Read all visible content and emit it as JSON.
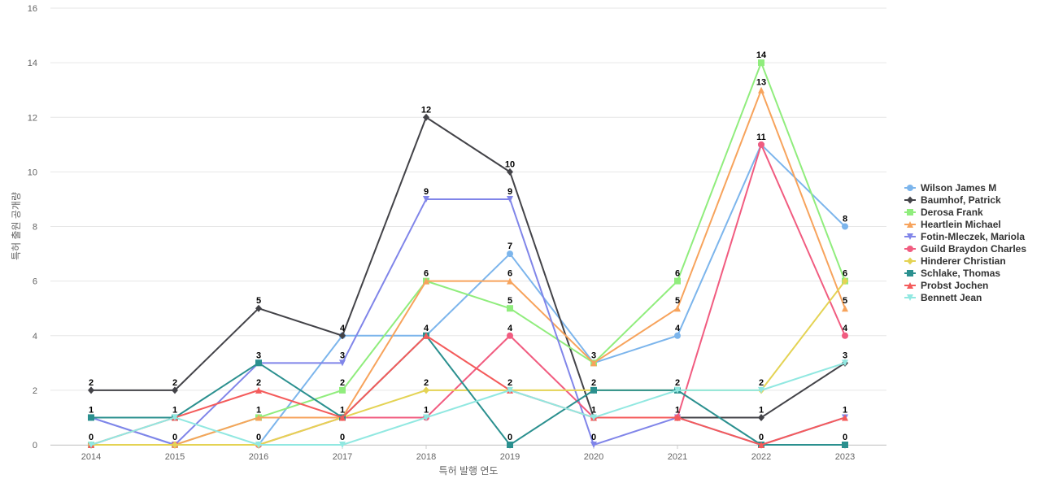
{
  "chart_data": {
    "type": "line",
    "title": "",
    "xlabel": "특허 발행 연도",
    "ylabel": "특허 출원 공개량",
    "categories": [
      "2014",
      "2015",
      "2016",
      "2017",
      "2018",
      "2019",
      "2020",
      "2021",
      "2022",
      "2023"
    ],
    "ylim": [
      0,
      16
    ],
    "yticks": [
      0,
      2,
      4,
      6,
      8,
      10,
      12,
      14,
      16
    ],
    "grid": true,
    "legend_position": "right",
    "series": [
      {
        "name": "Wilson James M",
        "color": "#7cb5ec",
        "marker": "circle",
        "values": [
          1,
          0,
          0,
          4,
          4,
          7,
          3,
          4,
          11,
          8
        ]
      },
      {
        "name": "Baumhof, Patrick",
        "color": "#434348",
        "marker": "diamond",
        "values": [
          2,
          2,
          5,
          4,
          12,
          10,
          1,
          1,
          1,
          3
        ]
      },
      {
        "name": "Derosa Frank",
        "color": "#90ed7d",
        "marker": "square",
        "values": [
          0,
          0,
          1,
          2,
          6,
          5,
          3,
          6,
          14,
          6
        ]
      },
      {
        "name": "Heartlein Michael",
        "color": "#f7a35c",
        "marker": "triangle",
        "values": [
          0,
          0,
          1,
          1,
          6,
          6,
          3,
          5,
          13,
          5
        ]
      },
      {
        "name": "Fotin-Mleczek, Mariola",
        "color": "#8085e9",
        "marker": "triangle-down",
        "values": [
          1,
          0,
          3,
          3,
          9,
          9,
          0,
          1,
          0,
          1
        ]
      },
      {
        "name": "Guild Braydon Charles",
        "color": "#f15c80",
        "marker": "circle",
        "values": [
          0,
          0,
          0,
          1,
          1,
          4,
          1,
          1,
          11,
          4
        ]
      },
      {
        "name": "Hinderer Christian",
        "color": "#e4d354",
        "marker": "diamond",
        "values": [
          0,
          0,
          0,
          1,
          2,
          2,
          2,
          2,
          2,
          6
        ]
      },
      {
        "name": "Schlake, Thomas",
        "color": "#2b908f",
        "marker": "square",
        "values": [
          1,
          1,
          3,
          1,
          4,
          0,
          2,
          2,
          0,
          0
        ]
      },
      {
        "name": "Probst Jochen",
        "color": "#f45b5b",
        "marker": "triangle",
        "values": [
          0,
          1,
          2,
          1,
          4,
          2,
          1,
          1,
          0,
          1
        ]
      },
      {
        "name": "Bennett Jean",
        "color": "#91e8e1",
        "marker": "triangle-down",
        "values": [
          0,
          1,
          0,
          0,
          1,
          2,
          1,
          2,
          2,
          3
        ]
      }
    ],
    "data_labels": [
      {
        "x": "2014",
        "y": 2,
        "text": "2"
      },
      {
        "x": "2014",
        "y": 1,
        "text": "1"
      },
      {
        "x": "2014",
        "y": 0,
        "text": "0"
      },
      {
        "x": "2015",
        "y": 2,
        "text": "2"
      },
      {
        "x": "2015",
        "y": 1,
        "text": "1"
      },
      {
        "x": "2015",
        "y": 0,
        "text": "0"
      },
      {
        "x": "2016",
        "y": 5,
        "text": "5"
      },
      {
        "x": "2016",
        "y": 3,
        "text": "3"
      },
      {
        "x": "2016",
        "y": 2,
        "text": "2"
      },
      {
        "x": "2016",
        "y": 1,
        "text": "1"
      },
      {
        "x": "2016",
        "y": 0,
        "text": "0"
      },
      {
        "x": "2017",
        "y": 4,
        "text": "4"
      },
      {
        "x": "2017",
        "y": 3,
        "text": "3"
      },
      {
        "x": "2017",
        "y": 2,
        "text": "2"
      },
      {
        "x": "2017",
        "y": 1,
        "text": "1"
      },
      {
        "x": "2017",
        "y": 0,
        "text": "0"
      },
      {
        "x": "2018",
        "y": 12,
        "text": "12"
      },
      {
        "x": "2018",
        "y": 9,
        "text": "9"
      },
      {
        "x": "2018",
        "y": 6,
        "text": "6"
      },
      {
        "x": "2018",
        "y": 4,
        "text": "4"
      },
      {
        "x": "2018",
        "y": 2,
        "text": "2"
      },
      {
        "x": "2018",
        "y": 1,
        "text": "1"
      },
      {
        "x": "2019",
        "y": 10,
        "text": "10"
      },
      {
        "x": "2019",
        "y": 9,
        "text": "9"
      },
      {
        "x": "2019",
        "y": 7,
        "text": "7"
      },
      {
        "x": "2019",
        "y": 6,
        "text": "6"
      },
      {
        "x": "2019",
        "y": 5,
        "text": "5"
      },
      {
        "x": "2019",
        "y": 4,
        "text": "4"
      },
      {
        "x": "2019",
        "y": 2,
        "text": "2"
      },
      {
        "x": "2019",
        "y": 0,
        "text": "0"
      },
      {
        "x": "2020",
        "y": 3,
        "text": "3"
      },
      {
        "x": "2020",
        "y": 2,
        "text": "2"
      },
      {
        "x": "2020",
        "y": 1,
        "text": "1"
      },
      {
        "x": "2020",
        "y": 0,
        "text": "0"
      },
      {
        "x": "2021",
        "y": 6,
        "text": "6"
      },
      {
        "x": "2021",
        "y": 5,
        "text": "5"
      },
      {
        "x": "2021",
        "y": 4,
        "text": "4"
      },
      {
        "x": "2021",
        "y": 2,
        "text": "2"
      },
      {
        "x": "2021",
        "y": 1,
        "text": "1"
      },
      {
        "x": "2022",
        "y": 14,
        "text": "14"
      },
      {
        "x": "2022",
        "y": 13,
        "text": "13"
      },
      {
        "x": "2022",
        "y": 11,
        "text": "11"
      },
      {
        "x": "2022",
        "y": 2,
        "text": "2"
      },
      {
        "x": "2022",
        "y": 1,
        "text": "1"
      },
      {
        "x": "2022",
        "y": 0,
        "text": "0"
      },
      {
        "x": "2023",
        "y": 8,
        "text": "8"
      },
      {
        "x": "2023",
        "y": 6,
        "text": "6"
      },
      {
        "x": "2023",
        "y": 5,
        "text": "5"
      },
      {
        "x": "2023",
        "y": 4,
        "text": "4"
      },
      {
        "x": "2023",
        "y": 3,
        "text": "3"
      },
      {
        "x": "2023",
        "y": 1,
        "text": "1"
      },
      {
        "x": "2023",
        "y": 0,
        "text": "0"
      }
    ]
  }
}
